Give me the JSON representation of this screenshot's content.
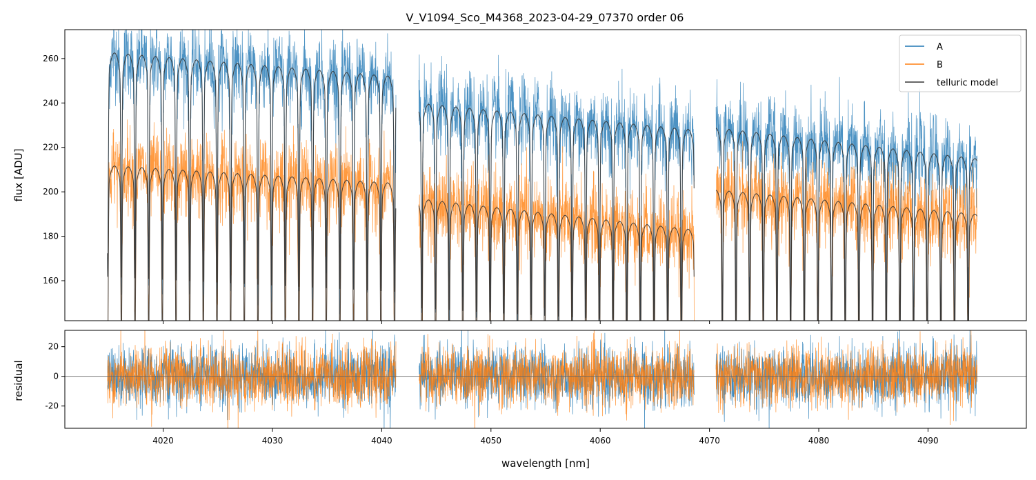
{
  "chart_data": [
    {
      "type": "line",
      "title": "V_V1094_Sco_M4368_2023-04-29_07370  order 06",
      "xlabel": "",
      "ylabel": "flux [ADU]",
      "xlim": [
        4011,
        4099
      ],
      "ylim": [
        142,
        273
      ],
      "yticks": [
        160,
        180,
        200,
        220,
        240,
        260
      ],
      "xticks": [
        4020,
        4030,
        4040,
        4050,
        4060,
        4070,
        4080,
        4090
      ],
      "x_ticklabels_shown": false,
      "legend_location": "upper right",
      "segments": [
        [
          4014.9,
          4041.3
        ],
        [
          4043.4,
          4068.6
        ],
        [
          4070.6,
          4094.5
        ]
      ],
      "series": [
        {
          "name": "A",
          "color": "#1f77b4",
          "style": "noisy spectrum",
          "continuum_at_segment_bounds": [
            [
              263,
              252
            ],
            [
              240,
              228
            ],
            [
              229,
              215
            ]
          ],
          "noise_sigma": 9
        },
        {
          "name": "B",
          "color": "#ff7f0e",
          "style": "noisy spectrum",
          "continuum_at_segment_bounds": [
            [
              212,
              204
            ],
            [
              197,
              183
            ],
            [
              201,
              190
            ]
          ],
          "noise_sigma": 9
        },
        {
          "name": "telluric model",
          "color": "#333333",
          "style": "smooth model with absorption lines",
          "line_spacing_nm": 1.25,
          "line_depth_fraction": 0.35
        }
      ]
    },
    {
      "type": "line",
      "title": "",
      "xlabel": "wavelength [nm]",
      "ylabel": "residual",
      "xlim": [
        4011,
        4099
      ],
      "ylim": [
        -35,
        31
      ],
      "yticks": [
        -20,
        0,
        20
      ],
      "xticks": [
        4020,
        4030,
        4040,
        4050,
        4060,
        4070,
        4080,
        4090
      ],
      "xticklabels": [
        "4020",
        "4030",
        "4040",
        "4050",
        "4060",
        "4070",
        "4080",
        "4090"
      ],
      "zero_line": true,
      "series": [
        {
          "name": "A",
          "color": "#1f77b4",
          "noise_sigma": 10
        },
        {
          "name": "B",
          "color": "#ff7f0e",
          "noise_sigma": 10
        }
      ]
    }
  ]
}
